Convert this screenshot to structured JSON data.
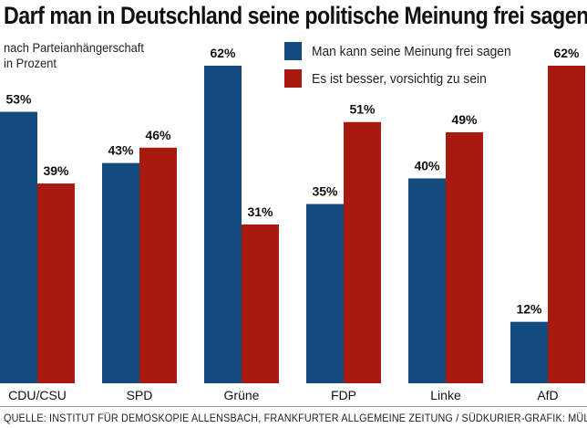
{
  "title": "Darf man in Deutschland seine politische Meinung frei sagen?",
  "subtitle_line1": "nach Parteianhängerschaft",
  "subtitle_line2": "in Prozent",
  "source": "QUELLE: INSTITUT FÜR DEMOSKOPIE ALLENSBACH, FRANKFURTER ALLGEMEINE ZEITUNG / SÜDKURIER-GRAFIK: MÜLLER",
  "chart_data": {
    "type": "bar",
    "categories": [
      "CDU/CSU",
      "SPD",
      "Grüne",
      "FDP",
      "Linke",
      "AfD"
    ],
    "series": [
      {
        "name": "Man kann seine Meinung frei sagen",
        "color": "#134b7f",
        "values": [
          53,
          43,
          62,
          35,
          40,
          12
        ]
      },
      {
        "name": "Es ist besser, vorsichtig zu sein",
        "color": "#a81a10",
        "values": [
          39,
          46,
          31,
          51,
          49,
          62
        ]
      }
    ],
    "value_suffix": "%",
    "ylim": [
      0,
      62
    ],
    "grid": false,
    "legend_position": "top-right"
  }
}
